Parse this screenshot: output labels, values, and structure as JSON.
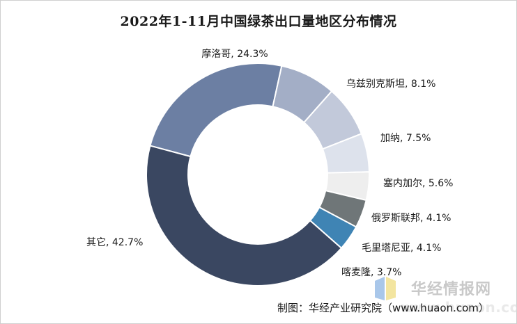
{
  "chart_data": {
    "type": "pie",
    "style": "donut",
    "title": "2022年1-11月中国绿茶出口量地区分布情况",
    "slices": [
      {
        "label": "摩洛哥",
        "value": 24.3,
        "display": "摩洛哥, 24.3%",
        "color": "#6c7fa3"
      },
      {
        "label": "乌兹别克斯坦",
        "value": 8.1,
        "display": "乌兹别克斯坦, 8.1%",
        "color": "#a3aec6"
      },
      {
        "label": "加纳",
        "value": 7.5,
        "display": "加纳, 7.5%",
        "color": "#c2c9da"
      },
      {
        "label": "塞内加尔",
        "value": 5.6,
        "display": "塞内加尔, 5.6%",
        "color": "#dde2ec"
      },
      {
        "label": "俄罗斯联邦",
        "value": 4.1,
        "display": "俄罗斯联邦, 4.1%",
        "color": "#eeeeee"
      },
      {
        "label": "毛里塔尼亚",
        "value": 4.1,
        "display": "毛里塔尼亚, 4.1%",
        "color": "#6f7678"
      },
      {
        "label": "喀麦隆",
        "value": 3.7,
        "display": "喀麦隆, 3.7%",
        "color": "#3f84b4"
      },
      {
        "label": "其它",
        "value": 42.7,
        "display": "其它, 42.7%",
        "color": "#3a4761"
      }
    ]
  },
  "source": {
    "text": "制图：华经产业研究院（www.huaon.com）"
  },
  "watermark": {
    "brand": "华经情报网",
    "url": "www.huaon.com"
  }
}
